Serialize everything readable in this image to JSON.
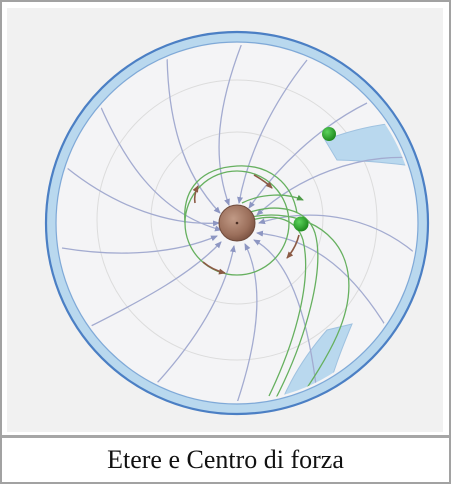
{
  "figure": {
    "caption": "Etere e Centro di forza",
    "colors": {
      "background": "#f1f1f1",
      "outer_ring": "#4b7fc4",
      "ring_fill": "#b9d8ee",
      "flow_lines": "#a3abd0",
      "green_lines": "#66b05f",
      "center_body": "#9b6f5b",
      "orbiting_bodies": "#2e9e2e",
      "rotation_arrows": "#8b5a44"
    },
    "icons": {
      "center": "central-sphere-icon",
      "bodies": "green-sphere-icon"
    }
  }
}
